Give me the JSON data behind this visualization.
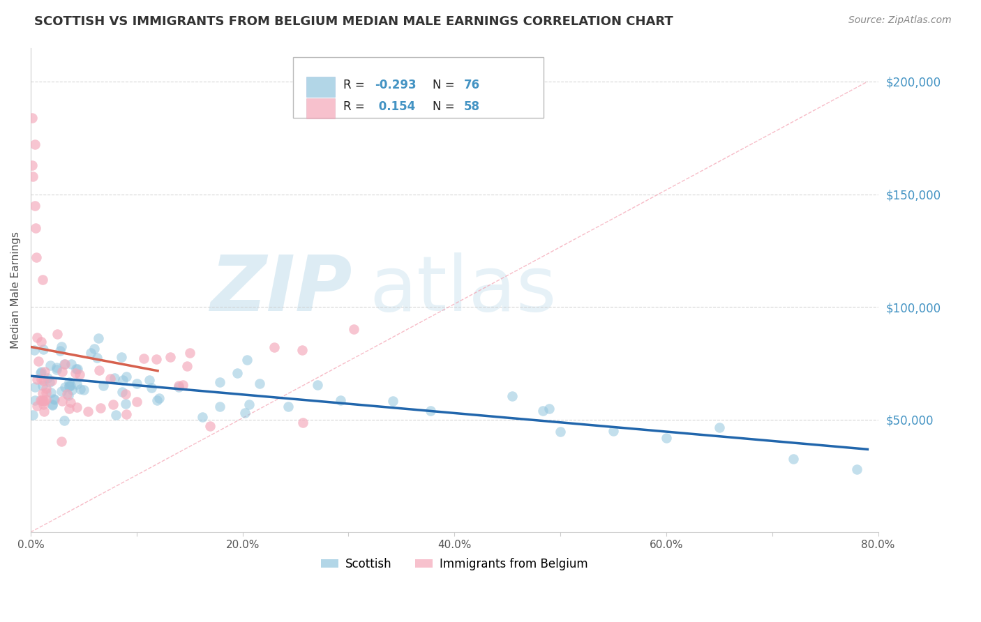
{
  "title": "SCOTTISH VS IMMIGRANTS FROM BELGIUM MEDIAN MALE EARNINGS CORRELATION CHART",
  "source": "Source: ZipAtlas.com",
  "ylabel": "Median Male Earnings",
  "scottish_color": "#92c5de",
  "belgium_color": "#f4a7b9",
  "scottish_line_color": "#2166ac",
  "belgium_line_color": "#d6604d",
  "diag_line_color": "#f4a0b0",
  "scottish_R": -0.293,
  "scottish_N": 76,
  "belgium_R": 0.154,
  "belgium_N": 58,
  "watermark_zip_color": "#9ecae1",
  "watermark_atlas_color": "#9ecae1",
  "background_color": "#ffffff",
  "grid_color": "#cccccc",
  "right_axis_color": "#4393c3",
  "title_color": "#333333",
  "xlim": [
    0.0,
    0.8
  ],
  "ylim": [
    0,
    215000
  ],
  "legend_text_color": "#333333",
  "legend_value_color": "#4393c3",
  "source_color": "#888888"
}
